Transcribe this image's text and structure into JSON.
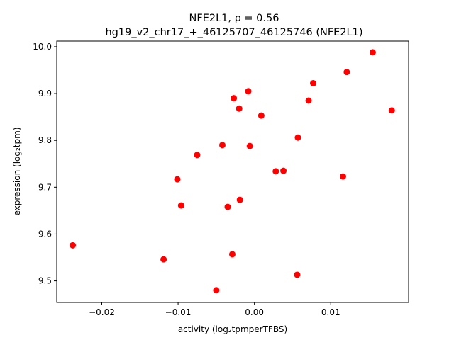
{
  "chart_data": {
    "type": "scatter",
    "title_line1": "NFE2L1, ρ = 0.56",
    "title_line2": "hg19_v2_chr17_+_46125707_46125746 (NFE2L1)",
    "xlabel": "activity (log₂tpmperTFBS)",
    "ylabel": "expression (log₂tpm)",
    "xlim": [
      -0.0259,
      0.0202
    ],
    "ylim": [
      9.454,
      10.012
    ],
    "grid": false,
    "marker_color": "#ff0000",
    "x_ticks": [
      {
        "value": -0.02,
        "label": "−0.02"
      },
      {
        "value": -0.01,
        "label": "−0.01"
      },
      {
        "value": 0.0,
        "label": "0.00"
      },
      {
        "value": 0.01,
        "label": "0.01"
      }
    ],
    "y_ticks": [
      {
        "value": 9.5,
        "label": "9.5"
      },
      {
        "value": 9.6,
        "label": "9.6"
      },
      {
        "value": 9.7,
        "label": "9.7"
      },
      {
        "value": 9.8,
        "label": "9.8"
      },
      {
        "value": 9.9,
        "label": "9.9"
      },
      {
        "value": 10.0,
        "label": "10.0"
      }
    ],
    "points": [
      {
        "x": -0.0238,
        "y": 9.576
      },
      {
        "x": -0.0119,
        "y": 9.546
      },
      {
        "x": -0.0101,
        "y": 9.717
      },
      {
        "x": -0.0096,
        "y": 9.661
      },
      {
        "x": -0.0075,
        "y": 9.769
      },
      {
        "x": -0.005,
        "y": 9.48
      },
      {
        "x": -0.0042,
        "y": 9.79
      },
      {
        "x": -0.0035,
        "y": 9.658
      },
      {
        "x": -0.0029,
        "y": 9.557
      },
      {
        "x": -0.0027,
        "y": 9.89
      },
      {
        "x": -0.002,
        "y": 9.868
      },
      {
        "x": -0.0019,
        "y": 9.673
      },
      {
        "x": -0.0008,
        "y": 9.905
      },
      {
        "x": -0.0006,
        "y": 9.788
      },
      {
        "x": 0.0009,
        "y": 9.853
      },
      {
        "x": 0.0028,
        "y": 9.734
      },
      {
        "x": 0.0038,
        "y": 9.735
      },
      {
        "x": 0.0056,
        "y": 9.513
      },
      {
        "x": 0.0057,
        "y": 9.806
      },
      {
        "x": 0.0071,
        "y": 9.885
      },
      {
        "x": 0.0077,
        "y": 9.922
      },
      {
        "x": 0.0116,
        "y": 9.723
      },
      {
        "x": 0.0121,
        "y": 9.946
      },
      {
        "x": 0.0155,
        "y": 9.988
      },
      {
        "x": 0.018,
        "y": 9.864
      }
    ]
  }
}
